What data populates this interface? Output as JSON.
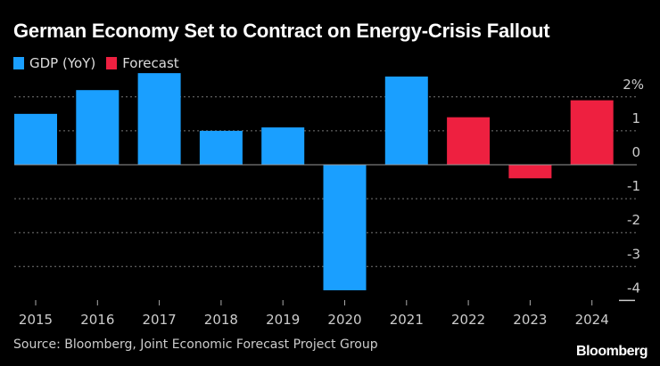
{
  "chart_data": {
    "type": "bar",
    "title": "German Economy Set to Contract on Energy-Crisis Fallout",
    "categories": [
      "2015",
      "2016",
      "2017",
      "2018",
      "2019",
      "2020",
      "2021",
      "2022",
      "2023",
      "2024"
    ],
    "series": [
      {
        "name": "GDP (YoY)",
        "color": "#1a9fff",
        "values": [
          1.5,
          2.2,
          2.7,
          1.0,
          1.1,
          -3.7,
          2.6,
          null,
          null,
          null
        ]
      },
      {
        "name": "Forecast",
        "color": "#ee2040",
        "values": [
          null,
          null,
          null,
          null,
          null,
          null,
          null,
          1.4,
          -0.4,
          1.9
        ]
      }
    ],
    "yticks": [
      {
        "v": 2,
        "label": "2%"
      },
      {
        "v": 1,
        "label": "1"
      },
      {
        "v": 0,
        "label": "0"
      },
      {
        "v": -1,
        "label": "-1"
      },
      {
        "v": -2,
        "label": "-2"
      },
      {
        "v": -3,
        "label": "-3"
      },
      {
        "v": -4,
        "label": "-4"
      }
    ],
    "ylim": [
      -4,
      2.7
    ],
    "grid": true,
    "legend": "top-left",
    "source": "Source: Bloomberg, Joint Economic Forecast Project Group"
  },
  "brand": "Bloomberg"
}
